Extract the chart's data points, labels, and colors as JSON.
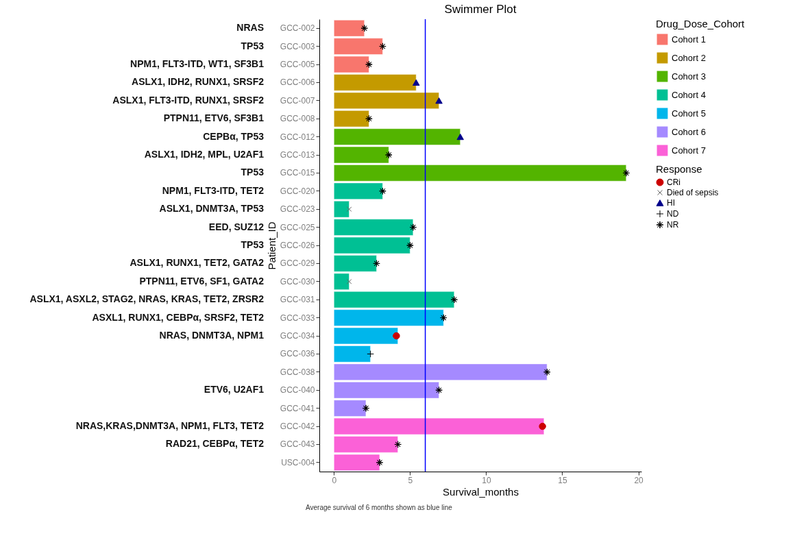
{
  "chart_data": {
    "type": "bar",
    "orientation": "horizontal",
    "title": "Swimmer Plot",
    "xlabel": "Survival_months",
    "ylabel": "Patient_ID",
    "legend_title": [
      "Response",
      "Drug_Dose_Cohort"
    ],
    "categories": [
      "GCC-002",
      "GCC-003",
      "GCC-005",
      "GCC-006",
      "GCC-007",
      "GCC-008",
      "GCC-012",
      "GCC-013",
      "GCC-015",
      "GCC-020",
      "GCC-023",
      "GCC-025",
      "GCC-026",
      "GCC-029",
      "GCC-030",
      "GCC-031",
      "GCC-033",
      "GCC-034",
      "GCC-036",
      "GCC-038",
      "GCC-040",
      "GCC-041",
      "GCC-042",
      "GCC-043",
      "USC-004"
    ],
    "y2_categories": [
      "NRAS",
      "TP53",
      "NPM1, FLT3-ITD, WT1, SF3B1",
      "ASLX1, IDH2, RUNX1, SRSF2",
      "ASLX1, FLT3-ITD, RUNX1, SRSF2",
      "PTPN11, ETV6, SF3B1",
      "CEPBα, TP53",
      "ASLX1, IDH2, MPL, U2AF1",
      "TP53",
      "NPM1, FLT3-ITD, TET2",
      "ASLX1, DNMT3A, TP53",
      "EED, SUZ12",
      "TP53",
      "ASLX1, RUNX1, TET2, GATA2",
      "PTPN11, ETV6, SF1, GATA2",
      "ASLX1, ASXL2, STAG2, NRAS, KRAS, TET2, ZRSR2",
      "ASXL1, RUNX1, CEBPα, SRSF2, TET2",
      "NRAS, DNMT3A, NPM1",
      null,
      null,
      "ETV6, U2AF1",
      null,
      "NRAS,KRAS,DNMT3A, NPM1, FLT3, TET2",
      "RAD21, CEBPα, TET2",
      null
    ],
    "series": [
      {
        "name": "Cohort 1",
        "color": "#f8766d",
        "values": [
          2.0,
          3.2,
          2.3,
          null,
          null,
          null,
          null,
          null,
          null,
          null,
          null,
          null,
          null,
          null,
          null,
          null,
          null,
          null,
          null,
          null,
          null,
          null,
          null,
          null,
          null
        ]
      },
      {
        "name": "Cohort 2",
        "color": "#c49a00",
        "values": [
          null,
          null,
          null,
          5.4,
          6.9,
          2.3,
          null,
          null,
          null,
          null,
          null,
          null,
          null,
          null,
          null,
          null,
          null,
          null,
          null,
          null,
          null,
          null,
          null,
          null,
          null
        ]
      },
      {
        "name": "Cohort 3",
        "color": "#53b400",
        "values": [
          null,
          null,
          null,
          null,
          null,
          null,
          8.3,
          3.6,
          19.2,
          null,
          null,
          null,
          null,
          null,
          null,
          null,
          null,
          null,
          null,
          null,
          null,
          null,
          null,
          null,
          null
        ]
      },
      {
        "name": "Cohort 4",
        "color": "#00c094",
        "values": [
          null,
          null,
          null,
          null,
          null,
          null,
          null,
          null,
          null,
          3.2,
          1.0,
          5.2,
          5.0,
          2.8,
          1.0,
          7.9,
          null,
          null,
          null,
          null,
          null,
          null,
          null,
          null,
          null
        ]
      },
      {
        "name": "Cohort 5",
        "color": "#00b6eb",
        "values": [
          null,
          null,
          null,
          null,
          null,
          null,
          null,
          null,
          null,
          null,
          null,
          null,
          null,
          null,
          null,
          null,
          7.2,
          4.2,
          2.4,
          null,
          null,
          null,
          null,
          null,
          null
        ]
      },
      {
        "name": "Cohort 6",
        "color": "#a58aff",
        "values": [
          null,
          null,
          null,
          null,
          null,
          null,
          null,
          null,
          null,
          null,
          null,
          null,
          null,
          null,
          null,
          null,
          null,
          null,
          null,
          14.0,
          6.9,
          2.1,
          null,
          null,
          null
        ]
      },
      {
        "name": "Cohort 7",
        "color": "#fb61d7",
        "values": [
          null,
          null,
          null,
          null,
          null,
          null,
          null,
          null,
          null,
          null,
          null,
          null,
          null,
          null,
          null,
          null,
          null,
          null,
          null,
          null,
          null,
          null,
          13.8,
          4.2,
          3.0
        ]
      },
      {
        "name": "CRi",
        "type": "scatter",
        "marker": "circle",
        "color": "#cc0000",
        "values": [
          null,
          null,
          null,
          null,
          null,
          null,
          null,
          null,
          null,
          null,
          null,
          null,
          null,
          null,
          null,
          null,
          null,
          4.1,
          null,
          null,
          null,
          null,
          13.7,
          null,
          null
        ]
      },
      {
        "name": "Died of sepsis",
        "type": "scatter",
        "marker": "x",
        "color": "#666666",
        "values": [
          null,
          null,
          null,
          null,
          null,
          null,
          null,
          null,
          null,
          null,
          1.0,
          null,
          null,
          null,
          1.0,
          null,
          null,
          null,
          null,
          null,
          null,
          null,
          null,
          null,
          null
        ]
      },
      {
        "name": "HI",
        "type": "scatter",
        "marker": "triangle",
        "color": "#00008b",
        "values": [
          null,
          null,
          null,
          5.4,
          6.9,
          null,
          8.3,
          null,
          null,
          null,
          null,
          null,
          null,
          null,
          null,
          null,
          null,
          null,
          null,
          null,
          null,
          null,
          null,
          null,
          null
        ]
      },
      {
        "name": "ND",
        "type": "scatter",
        "marker": "cross",
        "color": "#000000",
        "values": [
          null,
          null,
          null,
          null,
          null,
          null,
          null,
          null,
          null,
          null,
          null,
          null,
          null,
          null,
          null,
          null,
          null,
          null,
          2.4,
          null,
          null,
          null,
          null,
          null,
          null
        ]
      },
      {
        "name": "NR",
        "type": "scatter",
        "marker": "star",
        "color": "#000000",
        "values": [
          2.0,
          3.2,
          2.3,
          null,
          null,
          2.3,
          null,
          3.6,
          19.2,
          3.2,
          null,
          5.2,
          5.0,
          2.8,
          null,
          7.9,
          7.2,
          null,
          null,
          14.0,
          6.9,
          2.1,
          null,
          4.2,
          3.0
        ]
      }
    ],
    "xlim": [
      -0.96,
      20.2
    ],
    "xticks": [
      0,
      5,
      10,
      15,
      20
    ],
    "ref_lines": [
      {
        "axis": "x",
        "value": 6,
        "color": "#0000ff"
      }
    ],
    "legend": "right",
    "annotations": [
      "Average survival of 6 months shown as blue line"
    ]
  }
}
